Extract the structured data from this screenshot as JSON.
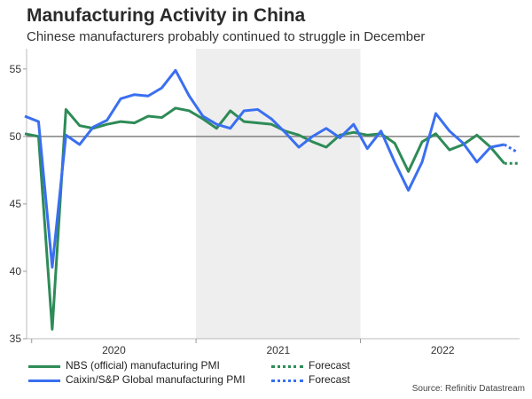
{
  "title": "Manufacturing Activity in China",
  "subtitle": "Chinese manufacturers probably continued to struggle in December",
  "source": "Source: Refinitiv Datastream",
  "legend": {
    "nbs_label": "NBS (official) manufacturing PMI",
    "caixin_label": "Caixin/S&P Global manufacturing PMI",
    "forecast_label_1": "Forecast",
    "forecast_label_2": "Forecast"
  },
  "colors": {
    "nbs": "#2e8b57",
    "caixin": "#3a6ff0",
    "reference_line": "#808080",
    "shade": "#eeeeee"
  },
  "chart_data": {
    "type": "line",
    "x": [
      "2019-12",
      "2020-01",
      "2020-02",
      "2020-03",
      "2020-04",
      "2020-05",
      "2020-06",
      "2020-07",
      "2020-08",
      "2020-09",
      "2020-10",
      "2020-11",
      "2020-12",
      "2021-01",
      "2021-02",
      "2021-03",
      "2021-04",
      "2021-05",
      "2021-06",
      "2021-07",
      "2021-08",
      "2021-09",
      "2021-10",
      "2021-11",
      "2021-12",
      "2022-01",
      "2022-02",
      "2022-03",
      "2022-04",
      "2022-05",
      "2022-06",
      "2022-07",
      "2022-08",
      "2022-09",
      "2022-10",
      "2022-11",
      "2022-12"
    ],
    "series": [
      {
        "name": "NBS (official) manufacturing PMI",
        "values": [
          50.2,
          50.0,
          35.7,
          52.0,
          50.8,
          50.6,
          50.9,
          51.1,
          51.0,
          51.5,
          51.4,
          52.1,
          51.9,
          51.3,
          50.6,
          51.9,
          51.1,
          51.0,
          50.9,
          50.4,
          50.1,
          49.6,
          49.2,
          50.1,
          50.3,
          50.1,
          50.2,
          49.5,
          47.4,
          49.6,
          50.2,
          49.0,
          49.4,
          50.1,
          49.2,
          48.0,
          null
        ],
        "forecast": [
          null,
          null,
          null,
          null,
          null,
          null,
          null,
          null,
          null,
          null,
          null,
          null,
          null,
          null,
          null,
          null,
          null,
          null,
          null,
          null,
          null,
          null,
          null,
          null,
          null,
          null,
          null,
          null,
          null,
          null,
          null,
          null,
          null,
          null,
          null,
          48.0,
          48.0
        ],
        "color": "#2e8b57"
      },
      {
        "name": "Caixin/S&P Global manufacturing PMI",
        "values": [
          51.5,
          51.1,
          40.3,
          50.1,
          49.4,
          50.7,
          51.2,
          52.8,
          53.1,
          53.0,
          53.6,
          54.9,
          53.0,
          51.5,
          50.9,
          50.6,
          51.9,
          52.0,
          51.3,
          50.3,
          49.2,
          50.0,
          50.6,
          49.9,
          50.9,
          49.1,
          50.4,
          48.1,
          46.0,
          48.1,
          51.7,
          50.4,
          49.5,
          48.1,
          49.2,
          49.4,
          null
        ],
        "forecast": [
          null,
          null,
          null,
          null,
          null,
          null,
          null,
          null,
          null,
          null,
          null,
          null,
          null,
          null,
          null,
          null,
          null,
          null,
          null,
          null,
          null,
          null,
          null,
          null,
          null,
          null,
          null,
          null,
          null,
          null,
          null,
          null,
          null,
          null,
          null,
          49.4,
          48.8
        ],
        "color": "#3a6ff0"
      }
    ],
    "x_tick_labels": [
      "2020",
      "2021",
      "2022"
    ],
    "y_ticks": [
      35,
      40,
      45,
      50,
      55
    ],
    "ylim": [
      35,
      56.5
    ],
    "reference_line": 50,
    "shaded_period": [
      "2021-01",
      "2021-12"
    ],
    "legend_position": "bottom-left",
    "grid": false
  }
}
